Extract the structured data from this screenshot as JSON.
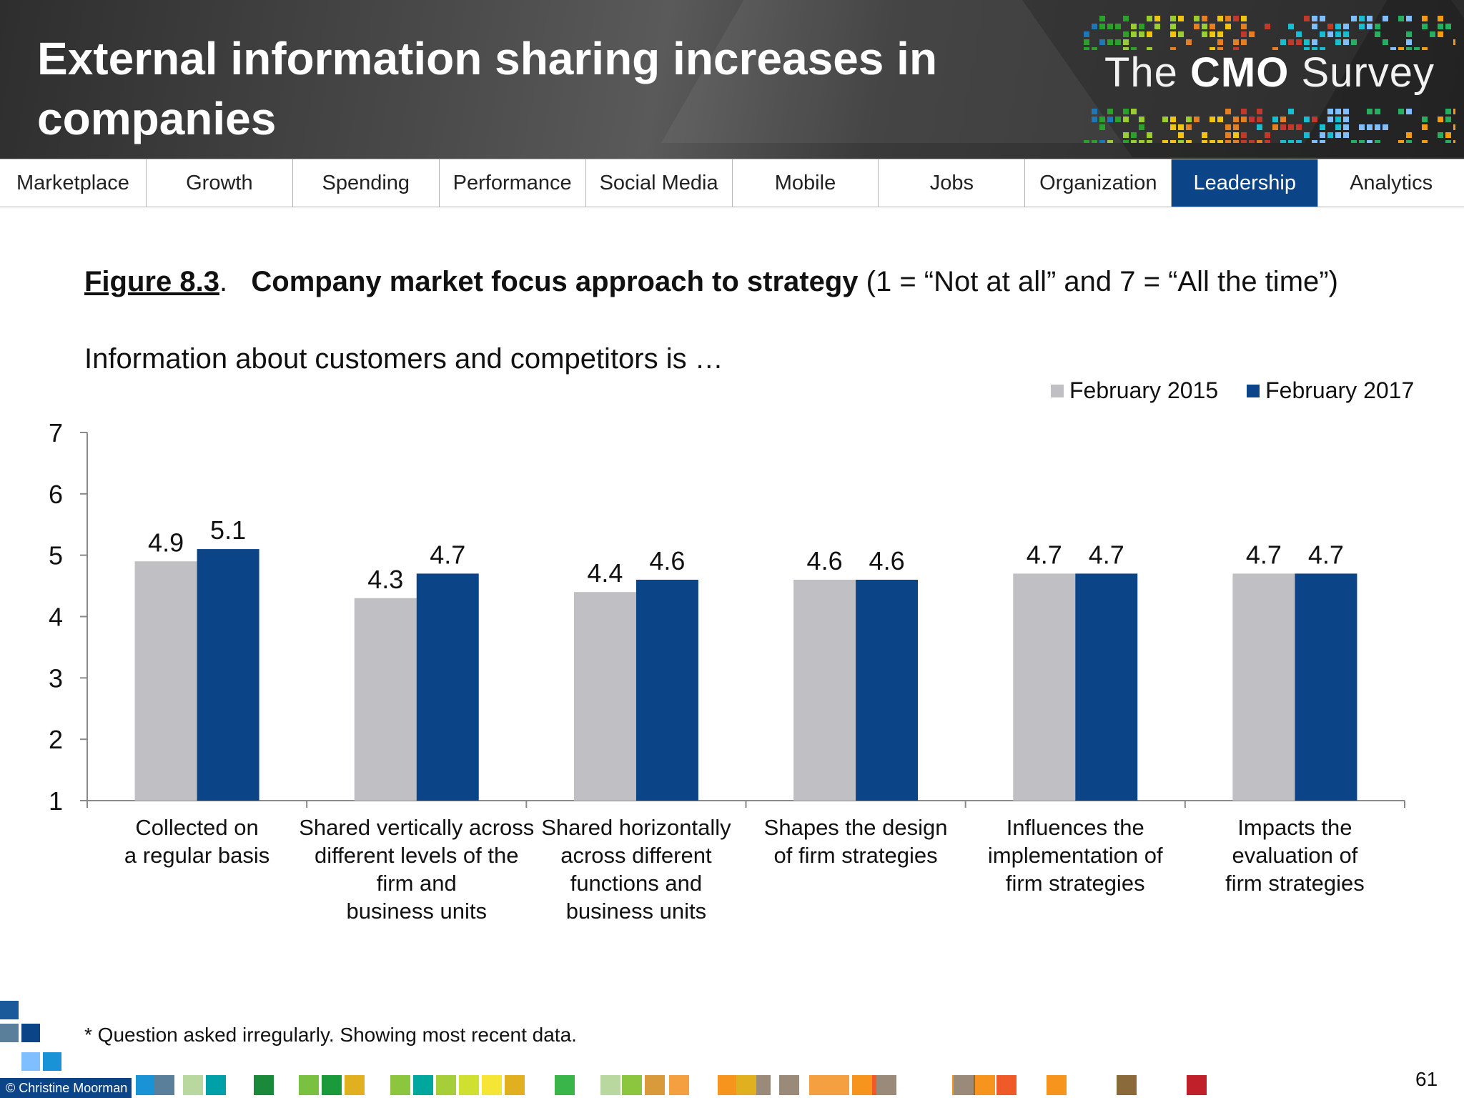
{
  "header": {
    "title": "External information sharing increases in companies",
    "logo": {
      "prefix": "The ",
      "bold": "CMO",
      "suffix": " Survey"
    }
  },
  "nav": {
    "tabs": [
      {
        "label": "Marketplace",
        "active": false
      },
      {
        "label": "Growth",
        "active": false
      },
      {
        "label": "Spending",
        "active": false
      },
      {
        "label": "Performance",
        "active": false
      },
      {
        "label": "Social Media",
        "active": false
      },
      {
        "label": "Mobile",
        "active": false
      },
      {
        "label": "Jobs",
        "active": false
      },
      {
        "label": "Organization",
        "active": false
      },
      {
        "label": "Leadership",
        "active": true
      },
      {
        "label": "Analytics",
        "active": false
      }
    ]
  },
  "figure": {
    "label": "Figure 8.3",
    "title": "Company market focus approach to strategy",
    "scale_note": "(1 = “Not at all” and 7 = “All the time”)",
    "subtitle": "Information about customers and competitors is …"
  },
  "chart_data": {
    "type": "bar",
    "categories": [
      "Collected on\na regular basis",
      "Shared vertically across\ndifferent levels of the\nfirm and\nbusiness units",
      "Shared horizontally\nacross different\nfunctions and\nbusiness units",
      "Shapes the design\nof firm strategies",
      "Influences the\nimplementation of\nfirm strategies",
      "Impacts the\nevaluation of\nfirm strategies"
    ],
    "series": [
      {
        "name": "February 2015",
        "color": "#c0c0c4",
        "values": [
          4.9,
          4.3,
          4.4,
          4.6,
          4.7,
          4.7
        ]
      },
      {
        "name": "February 2017",
        "color": "#0b4587",
        "values": [
          5.1,
          4.7,
          4.6,
          4.6,
          4.7,
          4.7
        ]
      }
    ],
    "yticks": [
      1,
      2,
      3,
      4,
      5,
      6,
      7
    ],
    "ylim": [
      1,
      7
    ],
    "legend_position": "top-right",
    "grid": false
  },
  "footnote": "* Question asked irregularly.  Showing most recent data.",
  "footer": {
    "credit": "© Christine Moorman",
    "page_number": "61"
  }
}
